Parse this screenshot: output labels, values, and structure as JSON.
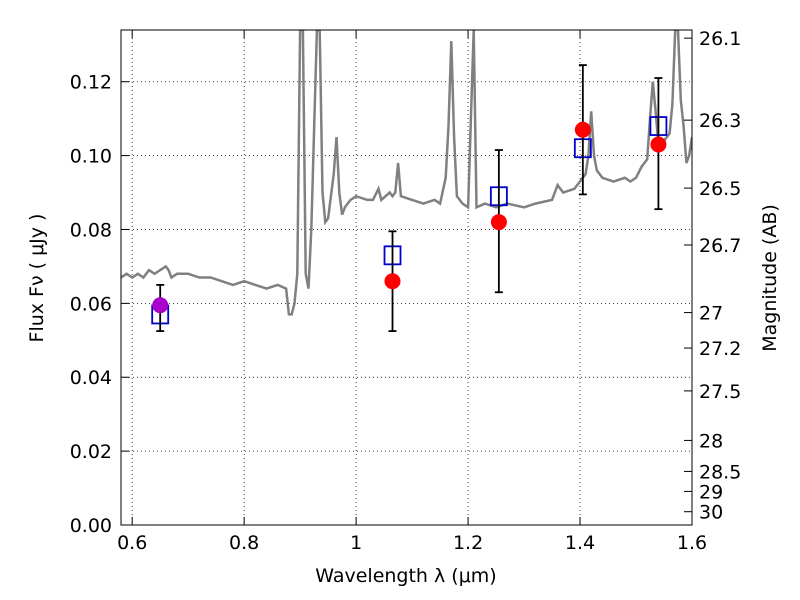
{
  "chart_data": {
    "type": "scatter",
    "xlabel": "Wavelength  λ (μm)",
    "ylabel": "Flux  Fν  ( μJy )",
    "y2label": "Magnitude (AB)",
    "xlim": [
      0.58,
      1.6
    ],
    "ylim": [
      0.0,
      0.134
    ],
    "grid": true,
    "x_ticks": [
      {
        "value": 0.6,
        "label": "0.6"
      },
      {
        "value": 0.8,
        "label": "0.8"
      },
      {
        "value": 1.0,
        "label": "1"
      },
      {
        "value": 1.2,
        "label": "1.2"
      },
      {
        "value": 1.4,
        "label": "1.4"
      },
      {
        "value": 1.6,
        "label": "1.6"
      }
    ],
    "y_ticks": [
      {
        "value": 0.0,
        "label": "0.00"
      },
      {
        "value": 0.02,
        "label": "0.02"
      },
      {
        "value": 0.04,
        "label": "0.04"
      },
      {
        "value": 0.06,
        "label": "0.06"
      },
      {
        "value": 0.08,
        "label": "0.08"
      },
      {
        "value": 0.1,
        "label": "0.10"
      },
      {
        "value": 0.12,
        "label": "0.12"
      }
    ],
    "y2_ticks": [
      {
        "flux": 0.1318,
        "label": "26.1"
      },
      {
        "flux": 0.1096,
        "label": "26.3"
      },
      {
        "flux": 0.0912,
        "label": "26.5"
      },
      {
        "flux": 0.0758,
        "label": "26.7"
      },
      {
        "flux": 0.0575,
        "label": "27"
      },
      {
        "flux": 0.0479,
        "label": "27.2"
      },
      {
        "flux": 0.0363,
        "label": "27.5"
      },
      {
        "flux": 0.0229,
        "label": "28"
      },
      {
        "flux": 0.0145,
        "label": "28.5"
      },
      {
        "flux": 0.0091,
        "label": "29"
      },
      {
        "flux": 0.0036,
        "label": "30"
      }
    ],
    "spectrum": {
      "color": "#808080",
      "points": [
        [
          0.58,
          0.067
        ],
        [
          0.59,
          0.068
        ],
        [
          0.6,
          0.067
        ],
        [
          0.61,
          0.068
        ],
        [
          0.62,
          0.067
        ],
        [
          0.63,
          0.069
        ],
        [
          0.64,
          0.068
        ],
        [
          0.65,
          0.069
        ],
        [
          0.66,
          0.07
        ],
        [
          0.665,
          0.069
        ],
        [
          0.67,
          0.067
        ],
        [
          0.68,
          0.068
        ],
        [
          0.7,
          0.068
        ],
        [
          0.72,
          0.067
        ],
        [
          0.74,
          0.067
        ],
        [
          0.76,
          0.066
        ],
        [
          0.78,
          0.065
        ],
        [
          0.8,
          0.066
        ],
        [
          0.82,
          0.065
        ],
        [
          0.84,
          0.064
        ],
        [
          0.86,
          0.065
        ],
        [
          0.875,
          0.064
        ],
        [
          0.88,
          0.057
        ],
        [
          0.885,
          0.057
        ],
        [
          0.89,
          0.06
        ],
        [
          0.895,
          0.068
        ],
        [
          0.9,
          0.134
        ],
        [
          0.905,
          0.134
        ],
        [
          0.91,
          0.068
        ],
        [
          0.915,
          0.064
        ],
        [
          0.92,
          0.08
        ],
        [
          0.93,
          0.134
        ],
        [
          0.935,
          0.134
        ],
        [
          0.94,
          0.09
        ],
        [
          0.945,
          0.082
        ],
        [
          0.95,
          0.083
        ],
        [
          0.96,
          0.095
        ],
        [
          0.965,
          0.105
        ],
        [
          0.97,
          0.09
        ],
        [
          0.975,
          0.084
        ],
        [
          0.98,
          0.086
        ],
        [
          0.99,
          0.088
        ],
        [
          1.0,
          0.089
        ],
        [
          1.02,
          0.088
        ],
        [
          1.03,
          0.088
        ],
        [
          1.04,
          0.091
        ],
        [
          1.045,
          0.088
        ],
        [
          1.06,
          0.09
        ],
        [
          1.065,
          0.089
        ],
        [
          1.07,
          0.09
        ],
        [
          1.075,
          0.098
        ],
        [
          1.08,
          0.089
        ],
        [
          1.1,
          0.088
        ],
        [
          1.12,
          0.087
        ],
        [
          1.14,
          0.088
        ],
        [
          1.15,
          0.087
        ],
        [
          1.16,
          0.094
        ],
        [
          1.165,
          0.108
        ],
        [
          1.17,
          0.131
        ],
        [
          1.175,
          0.105
        ],
        [
          1.18,
          0.089
        ],
        [
          1.19,
          0.087
        ],
        [
          1.2,
          0.086
        ],
        [
          1.21,
          0.134
        ],
        [
          1.215,
          0.086
        ],
        [
          1.23,
          0.087
        ],
        [
          1.25,
          0.086
        ],
        [
          1.27,
          0.087
        ],
        [
          1.3,
          0.086
        ],
        [
          1.32,
          0.087
        ],
        [
          1.35,
          0.088
        ],
        [
          1.36,
          0.092
        ],
        [
          1.37,
          0.09
        ],
        [
          1.39,
          0.091
        ],
        [
          1.4,
          0.093
        ],
        [
          1.41,
          0.095
        ],
        [
          1.415,
          0.1
        ],
        [
          1.42,
          0.112
        ],
        [
          1.425,
          0.1
        ],
        [
          1.43,
          0.096
        ],
        [
          1.44,
          0.094
        ],
        [
          1.46,
          0.093
        ],
        [
          1.48,
          0.094
        ],
        [
          1.49,
          0.093
        ],
        [
          1.5,
          0.094
        ],
        [
          1.51,
          0.097
        ],
        [
          1.52,
          0.099
        ],
        [
          1.525,
          0.11
        ],
        [
          1.53,
          0.12
        ],
        [
          1.535,
          0.112
        ],
        [
          1.54,
          0.103
        ],
        [
          1.55,
          0.104
        ],
        [
          1.56,
          0.106
        ],
        [
          1.565,
          0.114
        ],
        [
          1.57,
          0.134
        ],
        [
          1.575,
          0.134
        ],
        [
          1.58,
          0.115
        ],
        [
          1.585,
          0.108
        ],
        [
          1.59,
          0.098
        ],
        [
          1.595,
          0.1
        ],
        [
          1.6,
          0.105
        ]
      ]
    },
    "squares": {
      "color": "#0000cc",
      "points": [
        {
          "x": 0.65,
          "y": 0.057
        },
        {
          "x": 1.065,
          "y": 0.073
        },
        {
          "x": 1.255,
          "y": 0.089
        },
        {
          "x": 1.405,
          "y": 0.102
        },
        {
          "x": 1.54,
          "y": 0.108
        }
      ]
    },
    "measurements": [
      {
        "x": 0.65,
        "y": 0.0595,
        "err_low": 0.0525,
        "err_high": 0.065,
        "color": "#aa00cc"
      },
      {
        "x": 1.065,
        "y": 0.066,
        "err_low": 0.0525,
        "err_high": 0.0795,
        "color": "#ff0000"
      },
      {
        "x": 1.255,
        "y": 0.082,
        "err_low": 0.063,
        "err_high": 0.1015,
        "color": "#ff0000"
      },
      {
        "x": 1.405,
        "y": 0.107,
        "err_low": 0.0895,
        "err_high": 0.1245,
        "color": "#ff0000"
      },
      {
        "x": 1.54,
        "y": 0.103,
        "err_low": 0.0855,
        "err_high": 0.121,
        "color": "#ff0000"
      }
    ]
  }
}
